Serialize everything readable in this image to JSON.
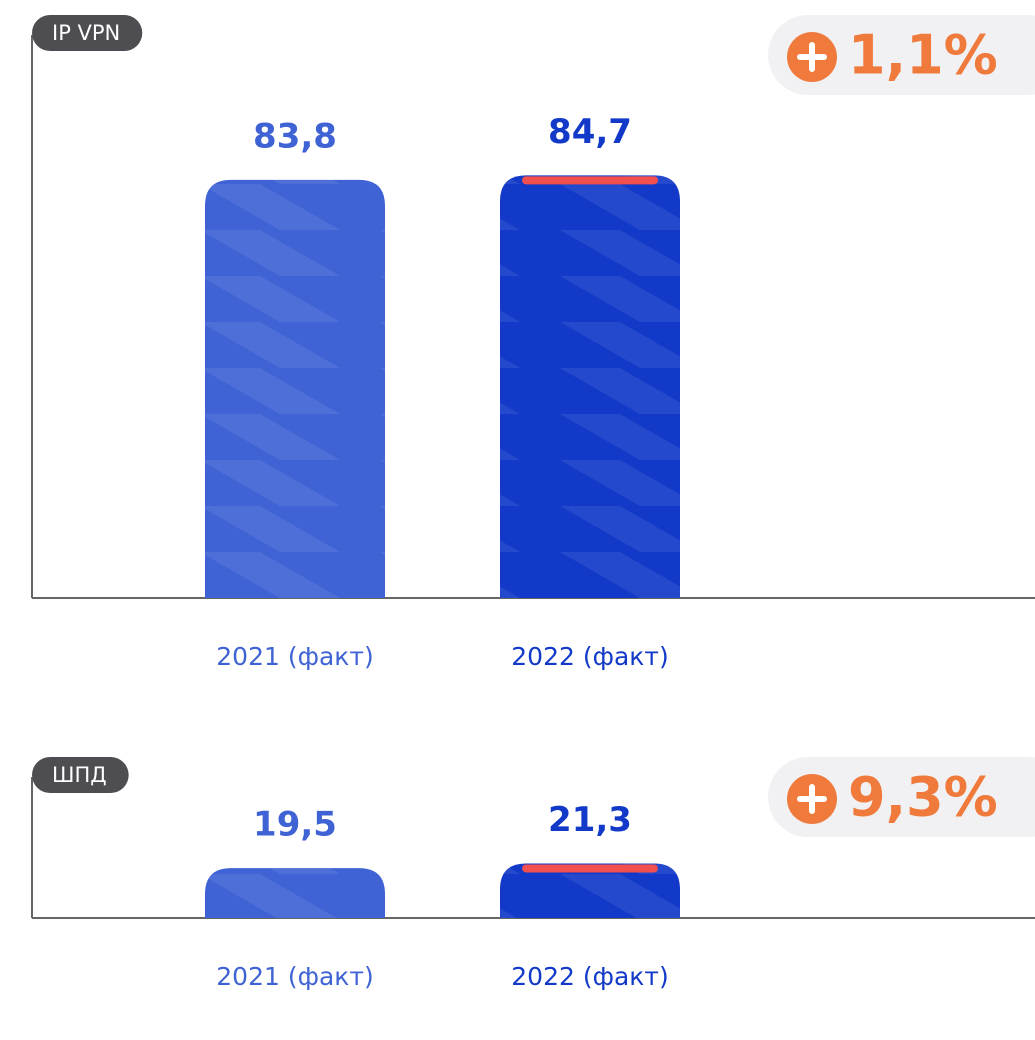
{
  "chart_data": [
    {
      "type": "bar",
      "title": "IP VPN",
      "annotation": "1,1%",
      "categories": [
        "2021 (факт)",
        "2022 (факт)"
      ],
      "values": [
        83.8,
        84.7
      ],
      "value_labels": [
        "83,8",
        "84,7"
      ],
      "colors": [
        "#3f63d4",
        "#1239c8"
      ]
    },
    {
      "type": "bar",
      "title": "ШПД",
      "annotation": "9,3%",
      "categories": [
        "2021 (факт)",
        "2022 (факт)"
      ],
      "values": [
        19.5,
        21.3
      ],
      "value_labels": [
        "19,5",
        "21,3"
      ],
      "colors": [
        "#3f63d4",
        "#1239c8"
      ]
    }
  ]
}
